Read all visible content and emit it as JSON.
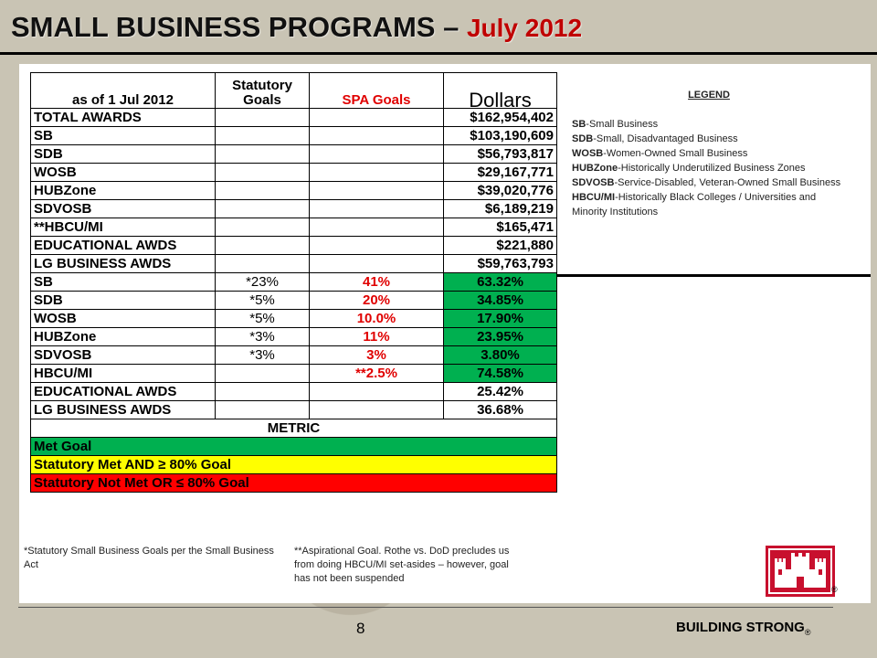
{
  "header": {
    "title_main": "SMALL BUSINESS PROGRAMS – ",
    "title_date": "July 2012"
  },
  "table": {
    "headers": {
      "as_of": "as of 1 Jul 2012",
      "statutory": "Statutory Goals",
      "spa": "SPA Goals",
      "dollars": "Dollars"
    },
    "dollar_rows": [
      {
        "label": "TOTAL AWARDS",
        "value": "$162,954,402"
      },
      {
        "label": "SB",
        "value": "$103,190,609"
      },
      {
        "label": "SDB",
        "value": "$56,793,817"
      },
      {
        "label": "WOSB",
        "value": "$29,167,771"
      },
      {
        "label": "HUBZone",
        "value": "$39,020,776"
      },
      {
        "label": "SDVOSB",
        "value": "$6,189,219"
      },
      {
        "label": "**HBCU/MI",
        "value": "$165,471"
      },
      {
        "label": "EDUCATIONAL AWDS",
        "value": "$221,880"
      },
      {
        "label": "LG BUSINESS AWDS",
        "value": "$59,763,793"
      }
    ],
    "percent_rows": [
      {
        "label": "SB",
        "statutory": "*23%",
        "spa": "41%",
        "value": "63.32%",
        "status": "green"
      },
      {
        "label": "SDB",
        "statutory": "*5%",
        "spa": "20%",
        "value": "34.85%",
        "status": "green"
      },
      {
        "label": "WOSB",
        "statutory": "*5%",
        "spa": "10.0%",
        "value": "17.90%",
        "status": "green"
      },
      {
        "label": "HUBZone",
        "statutory": "*3%",
        "spa": "11%",
        "value": "23.95%",
        "status": "green"
      },
      {
        "label": "SDVOSB",
        "statutory": "*3%",
        "spa": "3%",
        "value": "3.80%",
        "status": "green"
      },
      {
        "label": "HBCU/MI",
        "statutory": "",
        "spa": "**2.5%",
        "value": "74.58%",
        "status": "green"
      },
      {
        "label": "EDUCATIONAL AWDS",
        "statutory": "",
        "spa": "",
        "value": "25.42%",
        "status": "none"
      },
      {
        "label": "LG BUSINESS AWDS",
        "statutory": "",
        "spa": "",
        "value": "36.68%",
        "status": "none"
      }
    ],
    "metric_header": "METRIC",
    "metric_rows": [
      {
        "label": "Met Goal",
        "color": "#00b050"
      },
      {
        "label": "Statutory Met AND ≥ 80% Goal",
        "color": "#ffff00"
      },
      {
        "label": "Statutory Not Met OR ≤ 80% Goal",
        "color": "#ff0000"
      }
    ]
  },
  "legend": {
    "title": "LEGEND",
    "items": [
      {
        "abbr": "SB",
        "text": "-Small Business"
      },
      {
        "abbr": "SDB",
        "text": "-Small, Disadvantaged Business"
      },
      {
        "abbr": "WOSB",
        "text": "-Women-Owned Small Business"
      },
      {
        "abbr": "HUBZone",
        "text": "-Historically Underutilized Business Zones"
      },
      {
        "abbr": "SDVOSB",
        "text": "-Service-Disabled, Veteran-Owned Small Business"
      },
      {
        "abbr": "HBCU/MI",
        "text": "-Historically Black Colleges / Universities and Minority Institutions"
      }
    ]
  },
  "footnotes": {
    "statutory": "*Statutory Small Business Goals per the Small Business Act",
    "aspirational": "**Aspirational Goal. Rothe vs. DoD precludes us from doing HBCU/MI set-asides – however, goal has not been suspended"
  },
  "footer": {
    "page_number": "8",
    "tagline": "BUILDING STRONG",
    "registered": "®"
  },
  "colors": {
    "green": "#00b050",
    "yellow": "#ffff00",
    "red": "#ff0000",
    "title_date": "#c00000",
    "spa_text": "#e00000"
  }
}
